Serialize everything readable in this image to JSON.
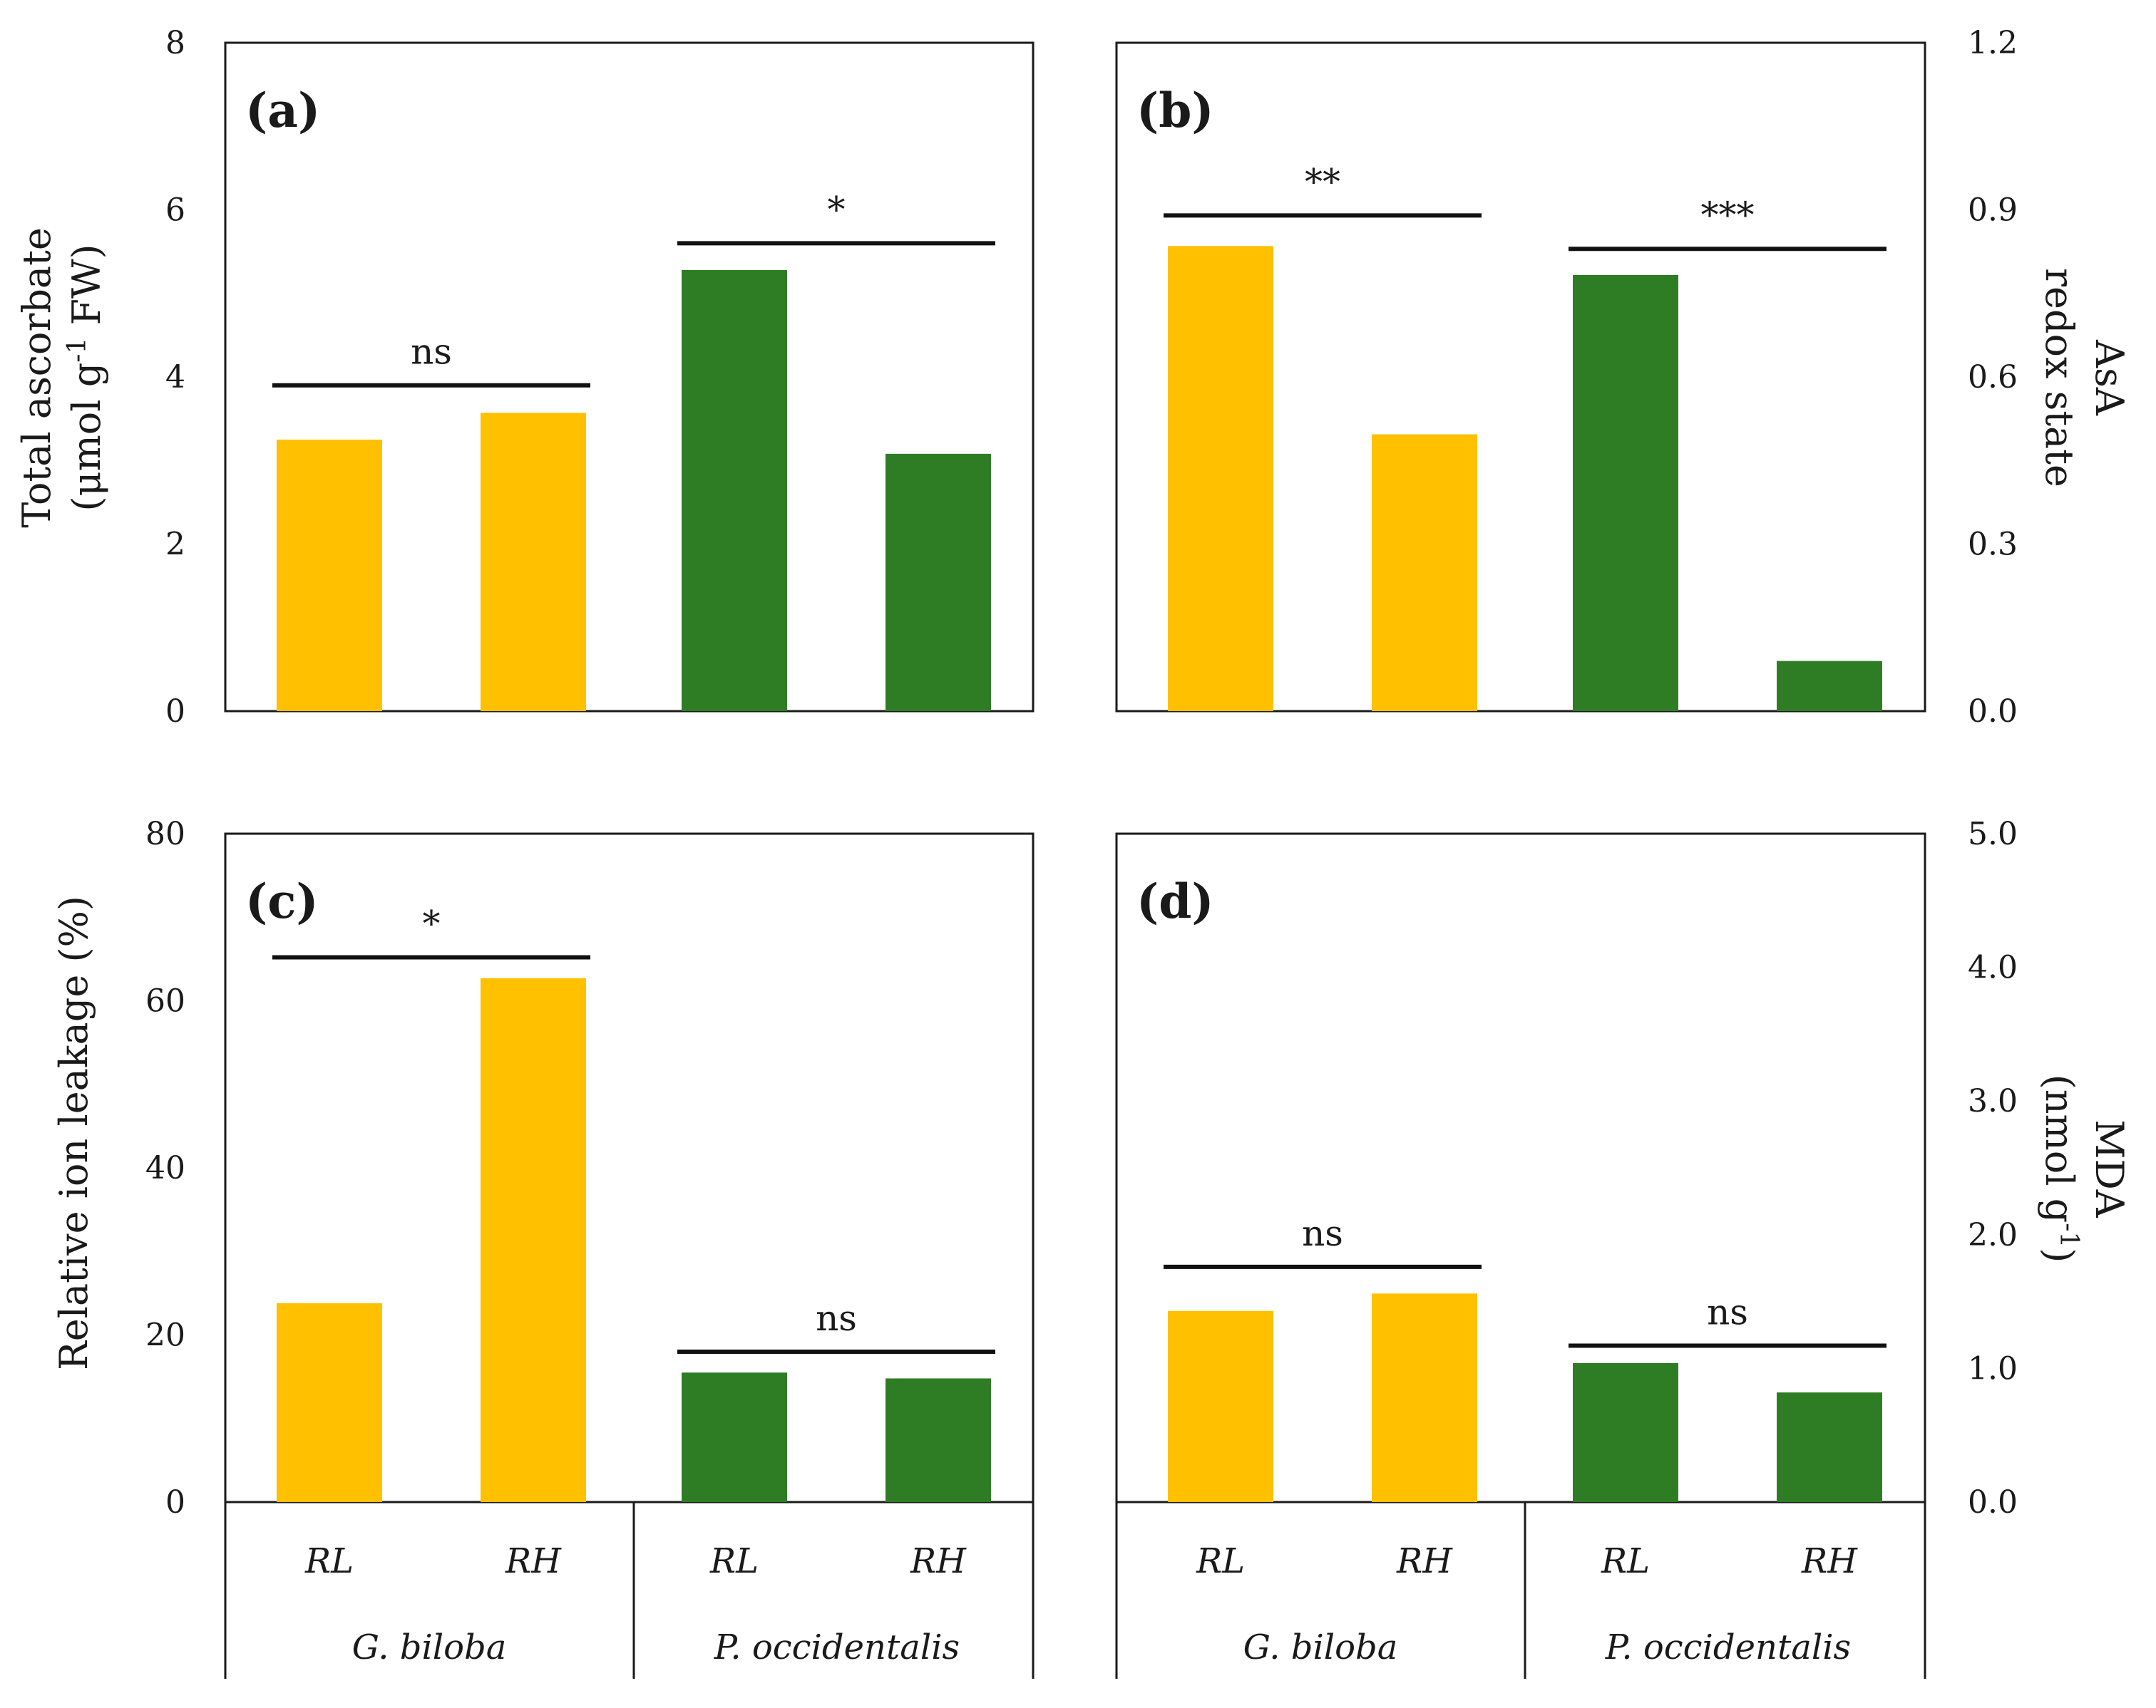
{
  "chart_data": [
    {
      "id": "a",
      "type": "bar",
      "panel_label": "(a)",
      "ylabel_lines": [
        "Total ascorbate",
        "(μmol g",
        "-1",
        " FW)"
      ],
      "ylim": [
        0,
        8
      ],
      "yticks": [
        "0",
        "2",
        "4",
        "6",
        "8"
      ],
      "axis_side": "left",
      "categories": [
        "RL",
        "RH",
        "RL",
        "RH"
      ],
      "groups": [
        "G. biloba",
        "G. biloba",
        "P. occidentalis",
        "P. occidentalis"
      ],
      "values": [
        3.25,
        3.57,
        5.28,
        3.08
      ],
      "bar_colors": [
        "#FFC000",
        "#FFC000",
        "#2E7D24",
        "#2E7D24"
      ],
      "significance": [
        {
          "bars": [
            0,
            1
          ],
          "label": "ns",
          "y": 3.9
        },
        {
          "bars": [
            2,
            3
          ],
          "label": "*",
          "y": 5.6
        }
      ]
    },
    {
      "id": "b",
      "type": "bar",
      "panel_label": "(b)",
      "ylabel_lines": [
        "AsA",
        "redox state"
      ],
      "ylim": [
        0,
        1.2
      ],
      "yticks": [
        "0.0",
        "0.3",
        "0.6",
        "0.9",
        "1.2"
      ],
      "axis_side": "right",
      "categories": [
        "RL",
        "RH",
        "RL",
        "RH"
      ],
      "groups": [
        "G. biloba",
        "G. biloba",
        "P. occidentalis",
        "P. occidentalis"
      ],
      "values": [
        0.835,
        0.497,
        0.783,
        0.09
      ],
      "bar_colors": [
        "#FFC000",
        "#FFC000",
        "#2E7D24",
        "#2E7D24"
      ],
      "significance": [
        {
          "bars": [
            0,
            1
          ],
          "label": "**",
          "y": 0.89
        },
        {
          "bars": [
            2,
            3
          ],
          "label": "***",
          "y": 0.83
        }
      ]
    },
    {
      "id": "c",
      "type": "bar",
      "panel_label": "(c)",
      "ylabel_lines": [
        "Relative ion leakage (%)"
      ],
      "ylim": [
        0,
        80
      ],
      "yticks": [
        "0",
        "20",
        "40",
        "60",
        "80"
      ],
      "axis_side": "left",
      "categories": [
        "RL",
        "RH",
        "RL",
        "RH"
      ],
      "groups": [
        "G. biloba",
        "G. biloba",
        "P. occidentalis",
        "P. occidentalis"
      ],
      "values": [
        23.8,
        62.7,
        15.5,
        14.8
      ],
      "bar_colors": [
        "#FFC000",
        "#FFC000",
        "#2E7D24",
        "#2E7D24"
      ],
      "significance": [
        {
          "bars": [
            0,
            1
          ],
          "label": "*",
          "y": 65.2
        },
        {
          "bars": [
            2,
            3
          ],
          "label": "ns",
          "y": 18.0
        }
      ]
    },
    {
      "id": "d",
      "type": "bar",
      "panel_label": "(d)",
      "ylabel_lines": [
        "MDA",
        "(nmol g",
        "-1",
        ")"
      ],
      "ylim": [
        0,
        5
      ],
      "yticks": [
        "0.0",
        "1.0",
        "2.0",
        "3.0",
        "4.0",
        "5.0"
      ],
      "axis_side": "right",
      "categories": [
        "RL",
        "RH",
        "RL",
        "RH"
      ],
      "groups": [
        "G. biloba",
        "G. biloba",
        "P. occidentalis",
        "P. occidentalis"
      ],
      "values": [
        1.43,
        1.56,
        1.04,
        0.82
      ],
      "bar_colors": [
        "#FFC000",
        "#FFC000",
        "#2E7D24",
        "#2E7D24"
      ],
      "significance": [
        {
          "bars": [
            0,
            1
          ],
          "label": "ns",
          "y": 1.76
        },
        {
          "bars": [
            2,
            3
          ],
          "label": "ns",
          "y": 1.17
        }
      ]
    }
  ]
}
